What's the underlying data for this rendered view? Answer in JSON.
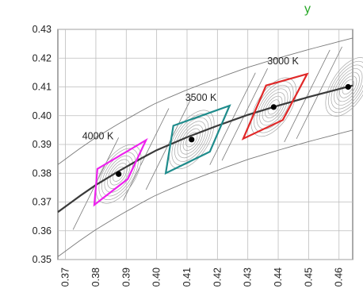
{
  "chart_data": {
    "type": "scatter",
    "title_fragment": "y",
    "colors": {
      "planckian_locus": "#3a3a3a",
      "gridlines": "#bdbdbd",
      "contours": "#a8a8a8",
      "bin_outline": "#7a7a7a",
      "title_fragment": "#27a827"
    },
    "x_ticks": [
      "0.37",
      "0.38",
      "0.39",
      "0.40",
      "0.41",
      "0.42",
      "0.43",
      "0.44",
      "0.45",
      "0.46"
    ],
    "y_ticks": [
      "0.43",
      "0.42",
      "0.41",
      "0.40",
      "0.39",
      "0.38",
      "0.37",
      "0.36",
      "0.35"
    ],
    "xlim": [
      0.3675,
      0.4645
    ],
    "ylim": [
      0.35,
      0.43
    ],
    "grid": true,
    "planckian_locus": {
      "x": [
        0.3675,
        0.375,
        0.38,
        0.3875,
        0.395,
        0.4,
        0.41,
        0.42,
        0.43,
        0.44,
        0.45,
        0.4645
      ],
      "y": [
        0.3665,
        0.3723,
        0.3759,
        0.3807,
        0.3852,
        0.388,
        0.3925,
        0.3965,
        0.4003,
        0.4035,
        0.4065,
        0.4105
      ]
    },
    "cct_points": [
      {
        "label": "4000 K",
        "x": 0.3875,
        "y": 0.3797,
        "color": "#ee22ee",
        "quad_x": [
          0.3805,
          0.3965,
          0.3905,
          0.3795
        ],
        "quad_y": [
          0.3815,
          0.3915,
          0.378,
          0.369
        ]
      },
      {
        "label": "3500 K",
        "x": 0.4115,
        "y": 0.3917,
        "color": "#1f8c8c",
        "quad_x": [
          0.4055,
          0.424,
          0.4175,
          0.403
        ],
        "quad_y": [
          0.3965,
          0.4035,
          0.3875,
          0.38
        ]
      },
      {
        "label": "3000 K",
        "x": 0.4385,
        "y": 0.403,
        "color": "#e02828",
        "quad_x": [
          0.436,
          0.4495,
          0.4415,
          0.4285
        ],
        "quad_y": [
          0.4105,
          0.4145,
          0.3985,
          0.392
        ]
      },
      {
        "label": "",
        "x": 0.463,
        "y": 0.41,
        "color": "",
        "quad_x": [],
        "quad_y": []
      }
    ]
  }
}
